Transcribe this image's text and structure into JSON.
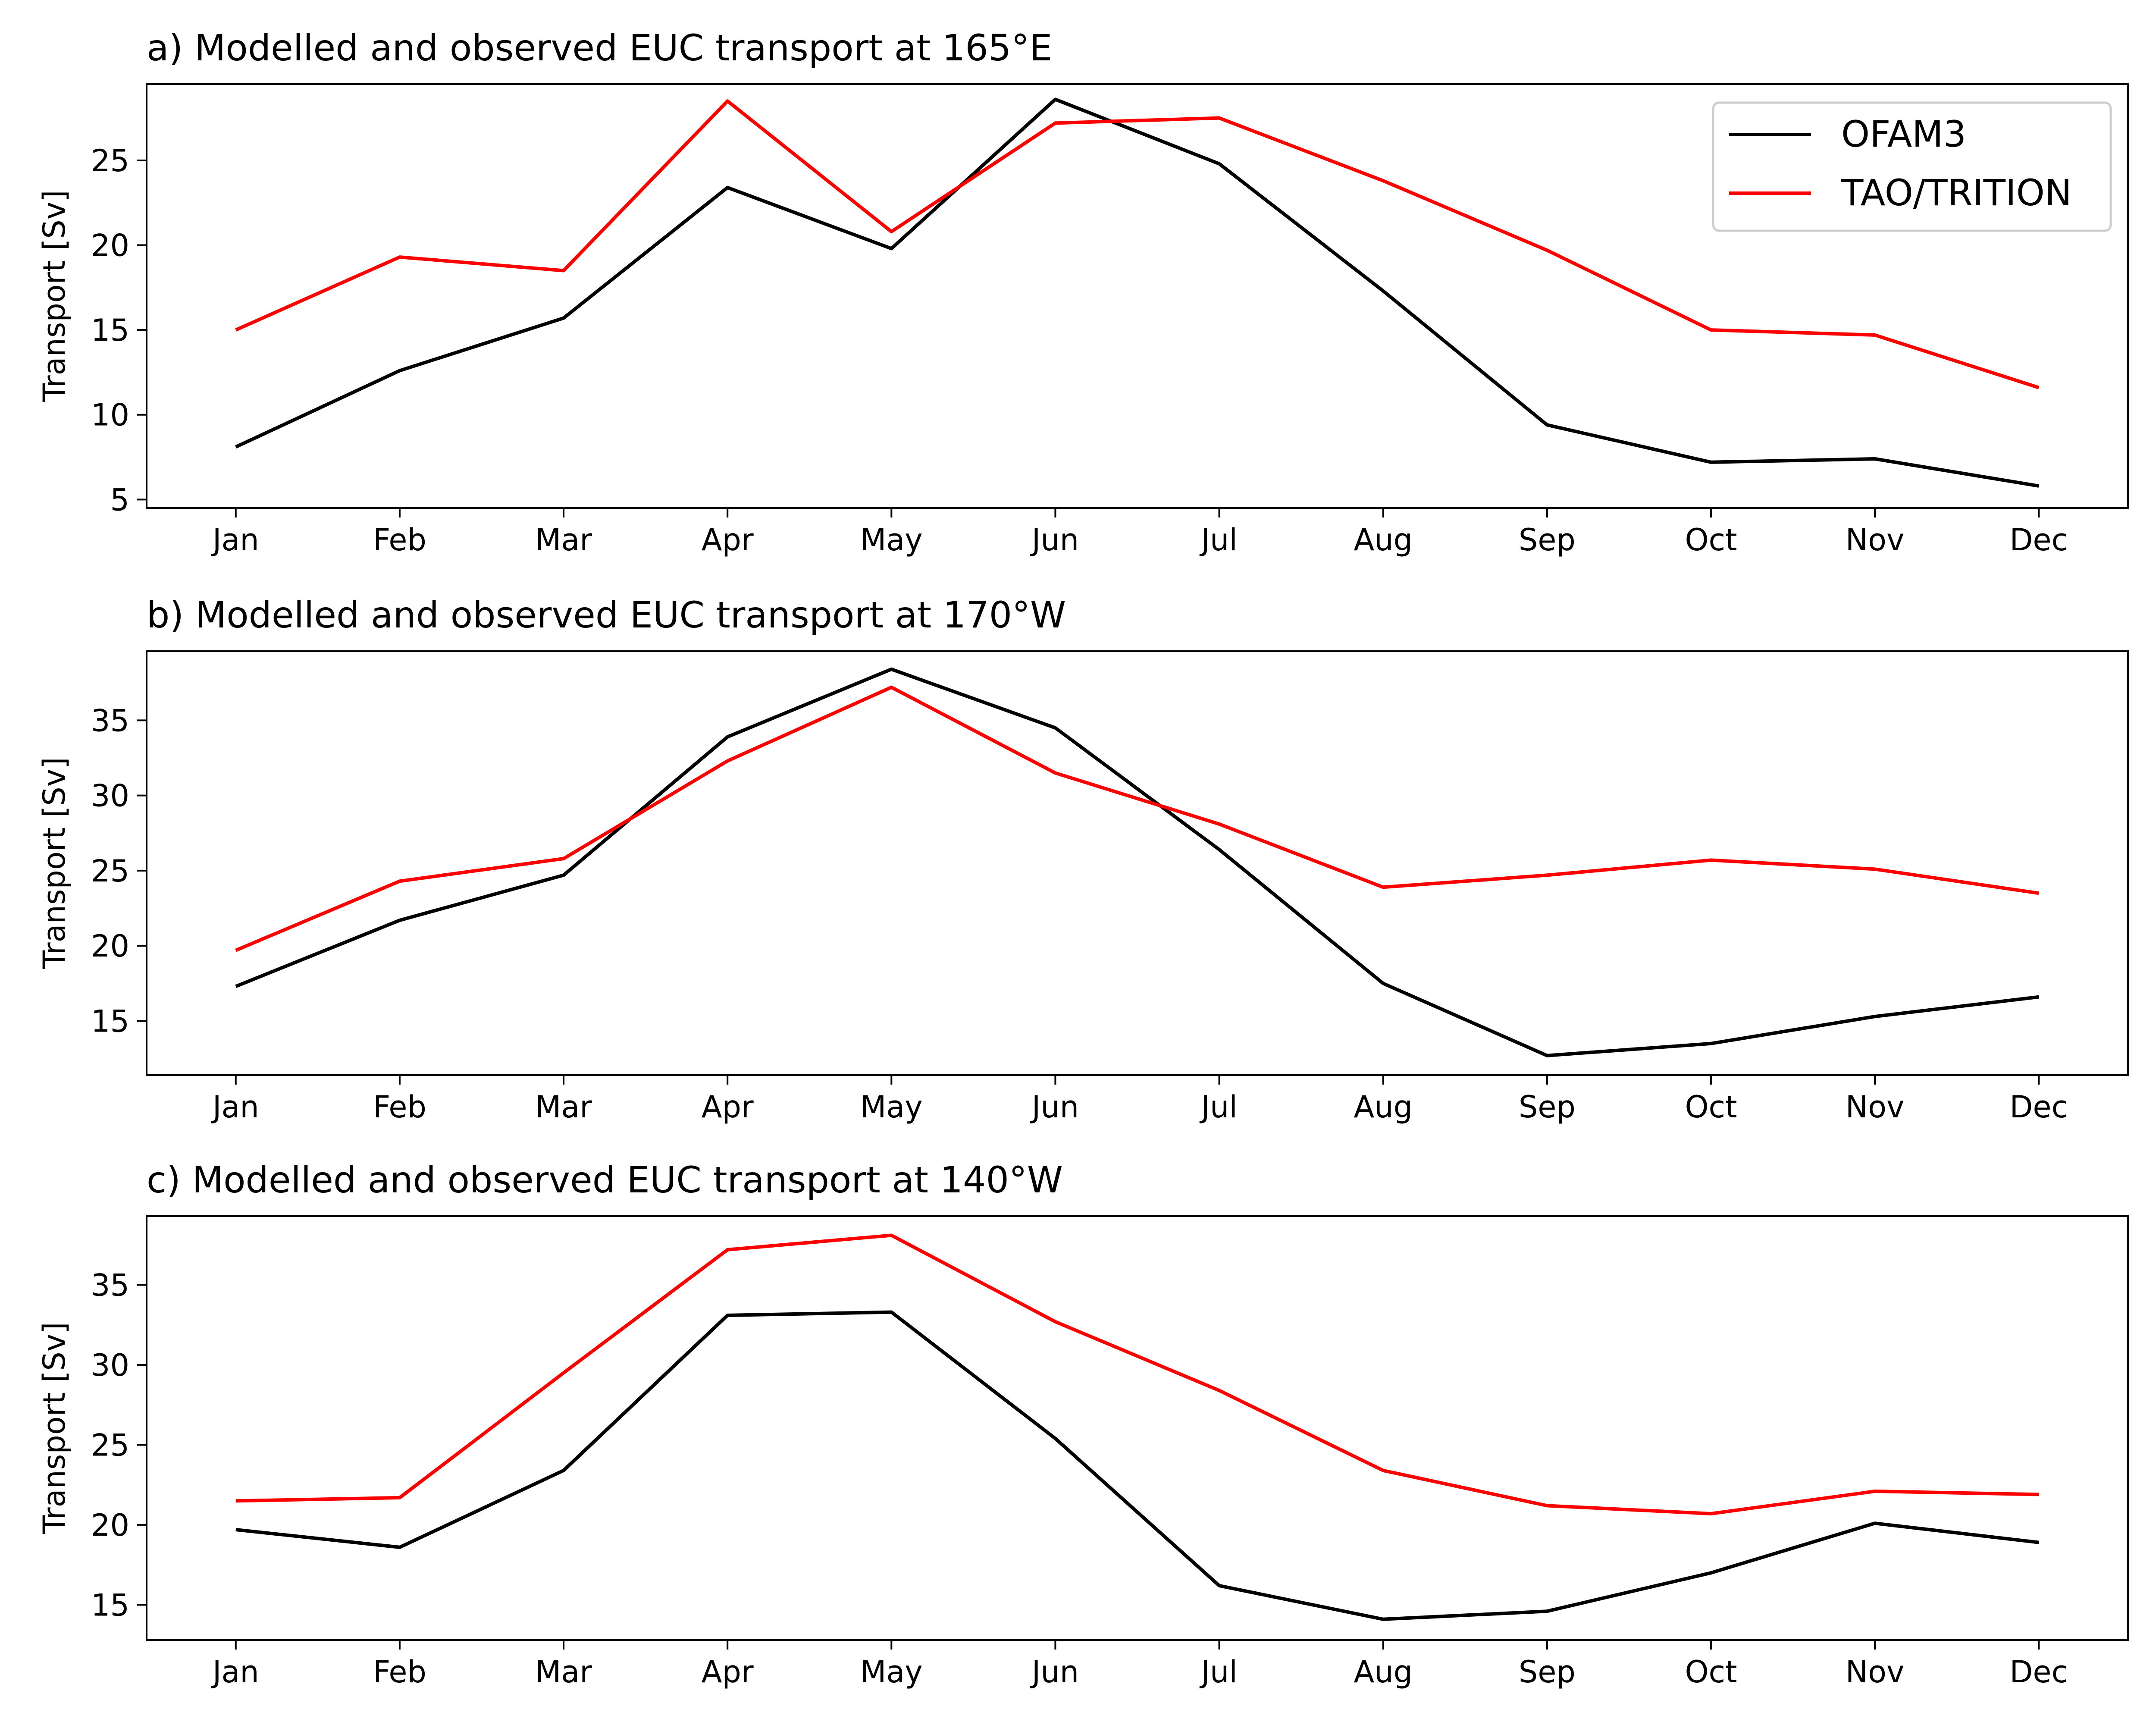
{
  "chart_data": [
    {
      "type": "line",
      "title": "a) Modelled and observed EUC transport at 165°E",
      "xlabel": "",
      "ylabel": "Transport [Sv]",
      "categories": [
        "Jan",
        "Feb",
        "Mar",
        "Apr",
        "May",
        "Jun",
        "Jul",
        "Aug",
        "Sep",
        "Oct",
        "Nov",
        "Dec"
      ],
      "ylim": [
        4.5,
        29.5
      ],
      "yticks": [
        5,
        10,
        15,
        20,
        25
      ],
      "legend": "top-right",
      "grid": false,
      "series": [
        {
          "name": "OFAM3",
          "color": "#000000",
          "values": [
            8.1,
            12.6,
            15.7,
            23.4,
            19.8,
            28.6,
            24.8,
            17.3,
            9.4,
            7.2,
            7.4,
            5.8
          ]
        },
        {
          "name": "TAO/TRITION",
          "color": "#ff0000",
          "values": [
            15.0,
            19.3,
            18.5,
            28.5,
            20.8,
            27.2,
            27.5,
            23.8,
            19.7,
            15.0,
            14.7,
            11.6
          ]
        }
      ]
    },
    {
      "type": "line",
      "title": "b) Modelled and observed EUC transport at 170°W",
      "xlabel": "",
      "ylabel": "Transport [Sv]",
      "categories": [
        "Jan",
        "Feb",
        "Mar",
        "Apr",
        "May",
        "Jun",
        "Jul",
        "Aug",
        "Sep",
        "Oct",
        "Nov",
        "Dec"
      ],
      "ylim": [
        11.4,
        39.6
      ],
      "yticks": [
        15,
        20,
        25,
        30,
        35
      ],
      "grid": false,
      "series": [
        {
          "name": "OFAM3",
          "color": "#000000",
          "values": [
            17.3,
            21.7,
            24.7,
            33.9,
            38.4,
            34.5,
            26.4,
            17.5,
            12.7,
            13.5,
            15.3,
            16.6
          ]
        },
        {
          "name": "TAO/TRITION",
          "color": "#ff0000",
          "values": [
            19.7,
            24.3,
            25.8,
            32.3,
            37.2,
            31.5,
            28.1,
            23.9,
            24.7,
            25.7,
            25.1,
            23.5
          ]
        }
      ]
    },
    {
      "type": "line",
      "title": "c) Modelled and observed EUC transport at 140°W",
      "xlabel": "",
      "ylabel": "Transport [Sv]",
      "categories": [
        "Jan",
        "Feb",
        "Mar",
        "Apr",
        "May",
        "Jun",
        "Jul",
        "Aug",
        "Sep",
        "Oct",
        "Nov",
        "Dec"
      ],
      "ylim": [
        12.8,
        39.3
      ],
      "yticks": [
        15,
        20,
        25,
        30,
        35
      ],
      "grid": false,
      "series": [
        {
          "name": "OFAM3",
          "color": "#000000",
          "values": [
            19.7,
            18.6,
            23.4,
            33.1,
            33.3,
            25.4,
            16.2,
            14.1,
            14.6,
            17.0,
            20.1,
            18.9
          ]
        },
        {
          "name": "TAO/TRITION",
          "color": "#ff0000",
          "values": [
            21.5,
            21.7,
            29.5,
            37.2,
            38.1,
            32.7,
            28.4,
            23.4,
            21.2,
            20.7,
            22.1,
            21.9
          ]
        }
      ]
    }
  ]
}
